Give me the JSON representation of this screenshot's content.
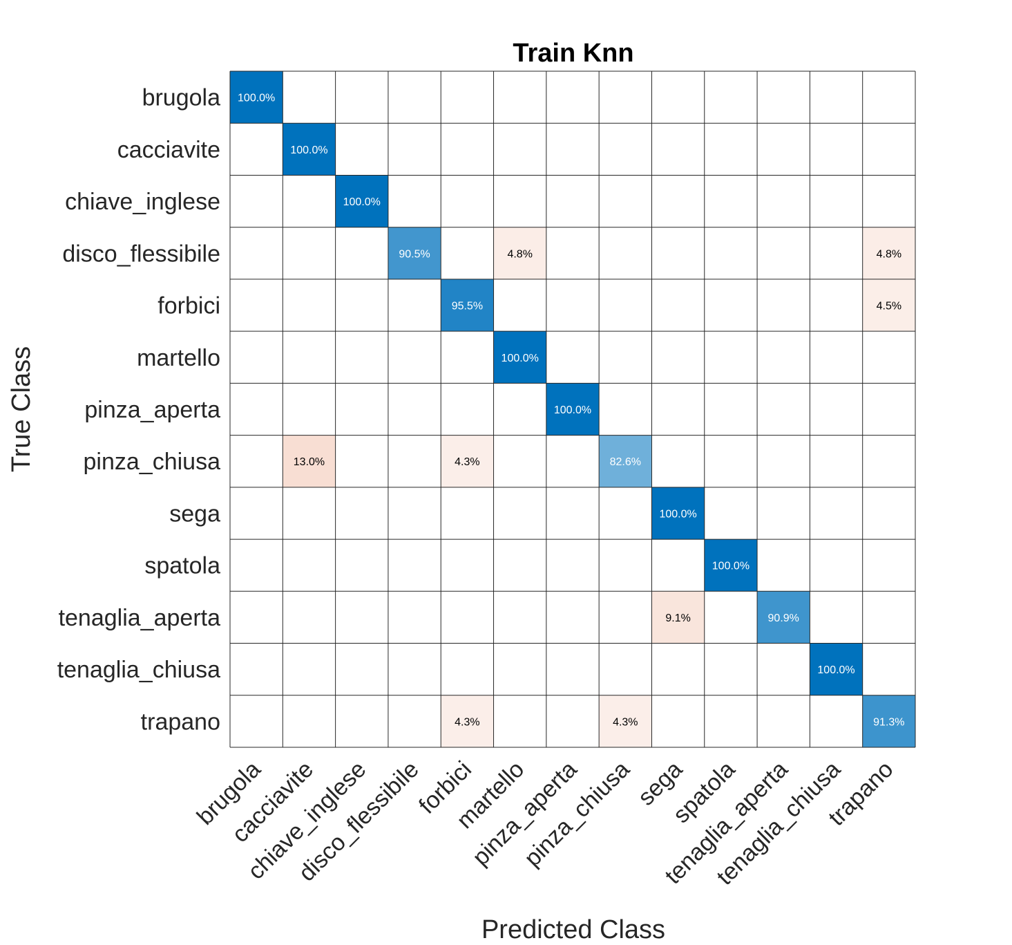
{
  "chart_data": {
    "type": "heatmap",
    "title": "Train Knn",
    "xlabel": "Predicted Class",
    "ylabel": "True Class",
    "classes": [
      "brugola",
      "cacciavite",
      "chiave_inglese",
      "disco_flessibile",
      "forbici",
      "martello",
      "pinza_aperta",
      "pinza_chiusa",
      "sega",
      "spatola",
      "tenaglia_aperta",
      "tenaglia_chiusa",
      "trapano"
    ],
    "value_format": "percent",
    "values": [
      [
        100.0,
        0,
        0,
        0,
        0,
        0,
        0,
        0,
        0,
        0,
        0,
        0,
        0
      ],
      [
        0,
        100.0,
        0,
        0,
        0,
        0,
        0,
        0,
        0,
        0,
        0,
        0,
        0
      ],
      [
        0,
        0,
        100.0,
        0,
        0,
        0,
        0,
        0,
        0,
        0,
        0,
        0,
        0
      ],
      [
        0,
        0,
        0,
        90.5,
        0,
        4.8,
        0,
        0,
        0,
        0,
        0,
        0,
        4.8
      ],
      [
        0,
        0,
        0,
        0,
        95.5,
        0,
        0,
        0,
        0,
        0,
        0,
        0,
        4.5
      ],
      [
        0,
        0,
        0,
        0,
        0,
        100.0,
        0,
        0,
        0,
        0,
        0,
        0,
        0
      ],
      [
        0,
        0,
        0,
        0,
        0,
        0,
        100.0,
        0,
        0,
        0,
        0,
        0,
        0
      ],
      [
        0,
        13.0,
        0,
        0,
        4.3,
        0,
        0,
        82.6,
        0,
        0,
        0,
        0,
        0
      ],
      [
        0,
        0,
        0,
        0,
        0,
        0,
        0,
        0,
        100.0,
        0,
        0,
        0,
        0
      ],
      [
        0,
        0,
        0,
        0,
        0,
        0,
        0,
        0,
        0,
        100.0,
        0,
        0,
        0
      ],
      [
        0,
        0,
        0,
        0,
        0,
        0,
        0,
        0,
        9.1,
        0,
        90.9,
        0,
        0
      ],
      [
        0,
        0,
        0,
        0,
        0,
        0,
        0,
        0,
        0,
        0,
        0,
        100.0,
        0
      ],
      [
        0,
        0,
        0,
        0,
        4.3,
        0,
        0,
        4.3,
        0,
        0,
        0,
        0,
        91.3
      ]
    ],
    "colors": {
      "diagonal": "#0072bd",
      "off_diagonal": "#d95319",
      "grid": "#262626",
      "background": "#ffffff"
    }
  }
}
